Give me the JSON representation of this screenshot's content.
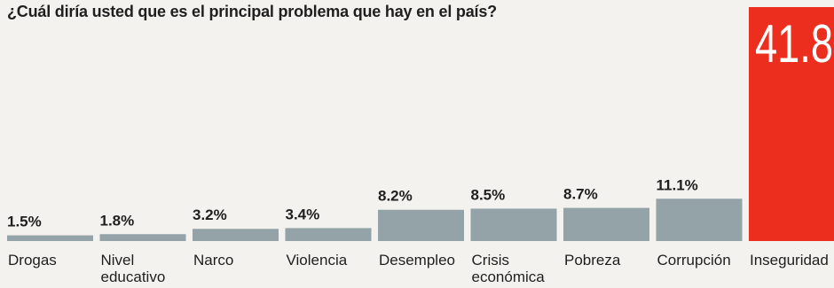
{
  "title": "¿Cuál diría usted que es el principal problema que hay en el país?",
  "colors": {
    "bar": "#93a3a8",
    "highlight": "#ec2e1f",
    "text": "#1f1f1f"
  },
  "chart_data": {
    "type": "bar",
    "title": "¿Cuál diría usted que es el principal problema que hay en el país?",
    "xlabel": "",
    "ylabel": "",
    "unit": "%",
    "grid": false,
    "categories": [
      "Drogas",
      "Nivel educativo",
      "Narco",
      "Violencia",
      "Desempleo",
      "Crisis económica",
      "Pobreza",
      "Corrupción",
      "Inseguridad"
    ],
    "category_lines": [
      [
        "Drogas"
      ],
      [
        "Nivel",
        "educativo"
      ],
      [
        "Narco"
      ],
      [
        "Violencia"
      ],
      [
        "Desempleo"
      ],
      [
        "Crisis",
        "económica"
      ],
      [
        "Pobreza"
      ],
      [
        "Corrupción"
      ],
      [
        "Inseguridad"
      ]
    ],
    "values": [
      1.5,
      1.8,
      3.2,
      3.4,
      8.2,
      8.5,
      8.7,
      11.1,
      41.8
    ],
    "value_labels": [
      "1.5%",
      "1.8%",
      "3.2%",
      "3.4%",
      "8.2%",
      "8.5%",
      "8.7%",
      "11.1%",
      "41.8"
    ],
    "highlight_index": 8
  }
}
